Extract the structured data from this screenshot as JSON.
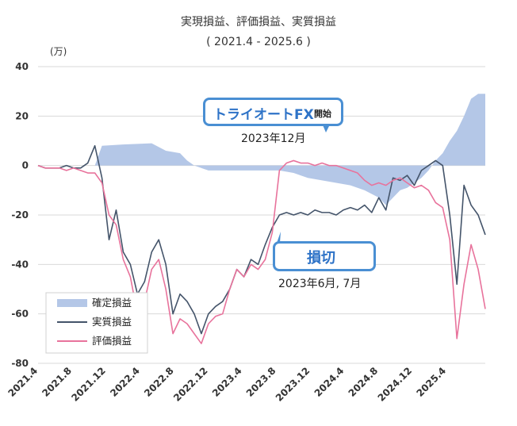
{
  "chart_data": {
    "type": "line",
    "title": "実現損益、評価損益、実質損益",
    "subtitle": "( 2021.4 - 2025.6 )",
    "y_unit": "(万)",
    "ylim": [
      -80,
      40
    ],
    "yticks": [
      40,
      20,
      0,
      -20,
      -40,
      -60,
      -80
    ],
    "x_tick_labels": [
      "2021.4",
      "2021.8",
      "2021.12",
      "2022.4",
      "2022.8",
      "2022.12",
      "2023.4",
      "2023.8",
      "2023.12",
      "2024.4",
      "2024.8",
      "2024.12",
      "2025.4"
    ],
    "grid": "horizontal",
    "legend_position": "bottom-left",
    "colors": {
      "確定損益": "#b4c7e7",
      "実質損益": "#44546a",
      "評価損益": "#e8739c",
      "callout_border": "#4a8fd3"
    },
    "series": [
      {
        "name": "確定損益",
        "style": "area",
        "points": [
          [
            0,
            0
          ],
          [
            8,
            0
          ],
          [
            9,
            8
          ],
          [
            12,
            8.5
          ],
          [
            16,
            9
          ],
          [
            18,
            6
          ],
          [
            20,
            5
          ],
          [
            21,
            2
          ],
          [
            22,
            0
          ],
          [
            23,
            -1
          ],
          [
            24,
            -2
          ],
          [
            25,
            -2
          ],
          [
            26,
            -2
          ],
          [
            28,
            -2
          ],
          [
            30,
            -2
          ],
          [
            34,
            -2
          ],
          [
            36,
            -3
          ],
          [
            38,
            -5
          ],
          [
            40,
            -6
          ],
          [
            42,
            -7
          ],
          [
            44,
            -8
          ],
          [
            45,
            -9
          ],
          [
            46,
            -10
          ],
          [
            48,
            -13
          ],
          [
            49,
            -16
          ],
          [
            50,
            -13
          ],
          [
            51,
            -10
          ],
          [
            52,
            -9
          ],
          [
            54,
            -5
          ],
          [
            55,
            -2
          ],
          [
            56,
            2
          ],
          [
            57,
            5
          ],
          [
            58,
            10
          ],
          [
            59,
            14
          ],
          [
            60,
            20
          ],
          [
            61,
            27
          ],
          [
            62,
            29
          ],
          [
            63,
            29
          ]
        ]
      },
      {
        "name": "実質損益",
        "style": "line",
        "points": [
          [
            0,
            0
          ],
          [
            1,
            -1
          ],
          [
            2,
            -1
          ],
          [
            3,
            -1
          ],
          [
            4,
            0
          ],
          [
            5,
            -1
          ],
          [
            6,
            -1
          ],
          [
            7,
            1
          ],
          [
            8,
            8
          ],
          [
            9,
            -5
          ],
          [
            10,
            -30
          ],
          [
            11,
            -18
          ],
          [
            12,
            -35
          ],
          [
            13,
            -40
          ],
          [
            14,
            -52
          ],
          [
            15,
            -47
          ],
          [
            16,
            -35
          ],
          [
            17,
            -30
          ],
          [
            18,
            -40
          ],
          [
            19,
            -60
          ],
          [
            20,
            -52
          ],
          [
            21,
            -55
          ],
          [
            22,
            -60
          ],
          [
            23,
            -68
          ],
          [
            24,
            -60
          ],
          [
            25,
            -57
          ],
          [
            26,
            -55
          ],
          [
            27,
            -50
          ],
          [
            28,
            -42
          ],
          [
            29,
            -45
          ],
          [
            30,
            -38
          ],
          [
            31,
            -40
          ],
          [
            32,
            -32
          ],
          [
            33,
            -25
          ],
          [
            34,
            -20
          ],
          [
            35,
            -19
          ],
          [
            36,
            -20
          ],
          [
            37,
            -19
          ],
          [
            38,
            -20
          ],
          [
            39,
            -18
          ],
          [
            40,
            -19
          ],
          [
            41,
            -19
          ],
          [
            42,
            -20
          ],
          [
            43,
            -18
          ],
          [
            44,
            -17
          ],
          [
            45,
            -18
          ],
          [
            46,
            -16
          ],
          [
            47,
            -19
          ],
          [
            48,
            -13
          ],
          [
            49,
            -18
          ],
          [
            50,
            -5
          ],
          [
            51,
            -6
          ],
          [
            52,
            -4
          ],
          [
            53,
            -8
          ],
          [
            54,
            -2
          ],
          [
            55,
            0
          ],
          [
            56,
            2
          ],
          [
            57,
            0
          ],
          [
            58,
            -20
          ],
          [
            59,
            -48
          ],
          [
            60,
            -8
          ],
          [
            61,
            -16
          ],
          [
            62,
            -20
          ],
          [
            63,
            -28
          ]
        ]
      },
      {
        "name": "評価損益",
        "style": "line",
        "points": [
          [
            0,
            0
          ],
          [
            1,
            -1
          ],
          [
            2,
            -1
          ],
          [
            3,
            -1
          ],
          [
            4,
            -2
          ],
          [
            5,
            -1
          ],
          [
            6,
            -2
          ],
          [
            7,
            -3
          ],
          [
            8,
            -3
          ],
          [
            9,
            -7
          ],
          [
            10,
            -20
          ],
          [
            11,
            -24
          ],
          [
            12,
            -38
          ],
          [
            13,
            -45
          ],
          [
            14,
            -60
          ],
          [
            15,
            -55
          ],
          [
            16,
            -42
          ],
          [
            17,
            -38
          ],
          [
            18,
            -50
          ],
          [
            19,
            -68
          ],
          [
            20,
            -62
          ],
          [
            21,
            -64
          ],
          [
            22,
            -68
          ],
          [
            23,
            -72
          ],
          [
            24,
            -64
          ],
          [
            25,
            -61
          ],
          [
            26,
            -60
          ],
          [
            27,
            -50
          ],
          [
            28,
            -42
          ],
          [
            29,
            -45
          ],
          [
            30,
            -40
          ],
          [
            31,
            -42
          ],
          [
            32,
            -38
          ],
          [
            33,
            -27
          ],
          [
            34,
            -2
          ],
          [
            35,
            1
          ],
          [
            36,
            2
          ],
          [
            37,
            1
          ],
          [
            38,
            1
          ],
          [
            39,
            0
          ],
          [
            40,
            1
          ],
          [
            41,
            0
          ],
          [
            42,
            0
          ],
          [
            43,
            -1
          ],
          [
            44,
            -2
          ],
          [
            45,
            -3
          ],
          [
            46,
            -6
          ],
          [
            47,
            -8
          ],
          [
            48,
            -7
          ],
          [
            49,
            -8
          ],
          [
            50,
            -6
          ],
          [
            51,
            -5
          ],
          [
            52,
            -7
          ],
          [
            53,
            -9
          ],
          [
            54,
            -8
          ],
          [
            55,
            -10
          ],
          [
            56,
            -15
          ],
          [
            57,
            -17
          ],
          [
            58,
            -30
          ],
          [
            59,
            -70
          ],
          [
            60,
            -48
          ],
          [
            61,
            -32
          ],
          [
            62,
            -42
          ],
          [
            63,
            -58
          ]
        ]
      }
    ]
  },
  "callouts": {
    "fx_start": {
      "main": "トライオートFX",
      "sub": "開始",
      "date": "2023年12月"
    },
    "stop_loss": {
      "main": "損切",
      "date": "2023年6月, 7月"
    }
  }
}
